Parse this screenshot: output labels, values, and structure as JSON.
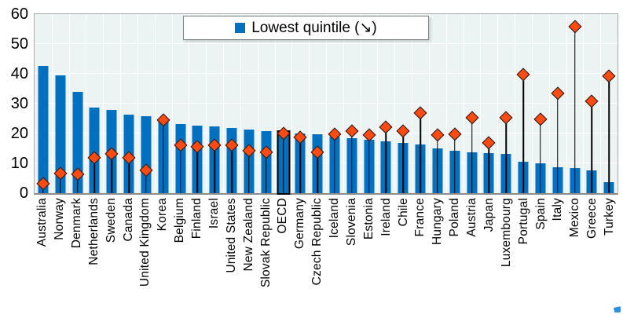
{
  "chart_data": {
    "type": "bar",
    "title": "",
    "xlabel": "",
    "ylabel": "",
    "ylim": [
      0,
      60
    ],
    "yticks": [
      0,
      10,
      20,
      30,
      40,
      50,
      60
    ],
    "grid": true,
    "legend_position": "top-center",
    "legend": {
      "label": "Lowest quintile (↘)",
      "marker": "square",
      "color": "#0070C0"
    },
    "highlighted_category": "OECD",
    "categories": [
      "Australia",
      "Norway",
      "Denmark",
      "Netherlands",
      "Sweden",
      "Canada",
      "United Kingdom",
      "Korea",
      "Belgium",
      "Finland",
      "Israel",
      "United States",
      "New Zealand",
      "Slovak Republic",
      "OECD",
      "Germany",
      "Czech Republic",
      "Iceland",
      "Slovenia",
      "Estonia",
      "Ireland",
      "Chile",
      "France",
      "Hungary",
      "Poland",
      "Austria",
      "Japan",
      "Luxembourg",
      "Portugal",
      "Spain",
      "Italy",
      "Mexico",
      "Greece",
      "Turkey"
    ],
    "series": [
      {
        "name": "Lowest quintile (↘)",
        "type": "bar",
        "color": "#0070C0",
        "values": [
          42.6,
          39.6,
          34.0,
          28.8,
          27.8,
          26.2,
          25.8,
          24.4,
          23.1,
          22.6,
          22.4,
          21.8,
          21.3,
          20.8,
          20.6,
          20.0,
          19.8,
          18.9,
          18.4,
          17.9,
          17.4,
          16.9,
          16.3,
          15.0,
          14.1,
          13.7,
          13.4,
          13.1,
          10.5,
          9.9,
          8.6,
          8.3,
          7.6,
          3.8
        ]
      },
      {
        "name": "Diamond marker",
        "type": "stem-diamond",
        "color": "#FF4A12",
        "values": [
          3.4,
          6.8,
          6.5,
          12.0,
          13.4,
          12.0,
          7.7,
          24.6,
          16.1,
          15.7,
          16.1,
          16.2,
          14.3,
          13.9,
          20.1,
          18.8,
          13.7,
          20.0,
          20.9,
          19.6,
          22.2,
          21.0,
          27.0,
          19.6,
          19.9,
          25.3,
          16.9,
          25.5,
          39.8,
          24.9,
          33.6,
          56.0,
          30.8,
          39.3
        ]
      }
    ],
    "colors": {
      "plot_background": "#EBF4F3",
      "gridline": "#FFFFFF",
      "bar": "#0070C0",
      "diamond": "#FF4A12",
      "highlight_outline": "#000000"
    }
  }
}
